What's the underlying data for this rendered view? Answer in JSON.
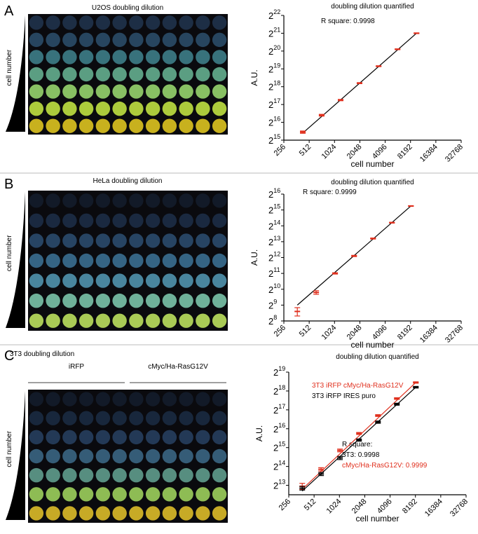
{
  "panels": [
    {
      "label": "A",
      "plate_title": "U2OS doubling dilution",
      "plate_axis": "cell number"
    },
    {
      "label": "B",
      "plate_title": "HeLa doubling dilution",
      "plate_axis": "cell number"
    },
    {
      "label": "C",
      "plate_title": "3T3 doubling dilution",
      "plate_axis": "cell number",
      "groups": [
        "iRFP",
        "cMyc/Ha-RasG12V"
      ]
    }
  ],
  "chart_data": [
    {
      "type": "scatter",
      "title": "doubling dilution quantified",
      "x_label": "cell number",
      "y_label": "A.U.",
      "xscale": "log2",
      "yscale": "log2",
      "xlim": [
        256,
        32768
      ],
      "xticks": [
        256,
        512,
        1024,
        2048,
        4096,
        8192,
        16384,
        32768
      ],
      "ylim": [
        32768,
        4194304
      ],
      "yticks": [
        {
          "value": 32768,
          "label": "2",
          "exponent": "15"
        },
        {
          "value": 65536,
          "label": "2",
          "exponent": "16"
        },
        {
          "value": 131072,
          "label": "2",
          "exponent": "17"
        },
        {
          "value": 262144,
          "label": "2",
          "exponent": "18"
        },
        {
          "value": 524288,
          "label": "2",
          "exponent": "19"
        },
        {
          "value": 1048576,
          "label": "2",
          "exponent": "20"
        },
        {
          "value": 2097152,
          "label": "2",
          "exponent": "21"
        },
        {
          "value": 4194304,
          "label": "2",
          "exponent": "22"
        }
      ],
      "annotations": [
        {
          "text": "R square: 0.9998",
          "color": "#000000"
        }
      ],
      "series": [
        {
          "color": "#e0301e",
          "fit_color": "#000000",
          "x": [
            430,
            720,
            1210,
            2030,
            3420,
            5740,
            9650
          ],
          "values": [
            44800,
            86500,
            155850,
            301100,
            582000,
            1124000,
            2097152
          ],
          "errors": [
            2000,
            3000,
            4000,
            6000,
            10000,
            18000,
            30000
          ],
          "fit_x": [
            430,
            9650
          ],
          "fit_values": [
            43200,
            2097152
          ]
        }
      ]
    },
    {
      "type": "scatter",
      "title": "doubling dilution quantified",
      "x_label": "cell number",
      "y_label": "A.U.",
      "xscale": "log2",
      "yscale": "log2",
      "xlim": [
        256,
        32768
      ],
      "xticks": [
        256,
        512,
        1024,
        2048,
        4096,
        8192,
        16384,
        32768
      ],
      "ylim": [
        256,
        65536
      ],
      "yticks": [
        {
          "value": 256,
          "label": "2",
          "exponent": "8"
        },
        {
          "value": 512,
          "label": "2",
          "exponent": "9"
        },
        {
          "value": 1024,
          "label": "2",
          "exponent": "10"
        },
        {
          "value": 2048,
          "label": "2",
          "exponent": "11"
        },
        {
          "value": 4096,
          "label": "2",
          "exponent": "12"
        },
        {
          "value": 8192,
          "label": "2",
          "exponent": "13"
        },
        {
          "value": 16384,
          "label": "2",
          "exponent": "14"
        },
        {
          "value": 32768,
          "label": "2",
          "exponent": "15"
        },
        {
          "value": 65536,
          "label": "2",
          "exponent": "16"
        }
      ],
      "annotations": [
        {
          "text": "R square: 0.9999",
          "color": "#000000"
        }
      ],
      "series": [
        {
          "color": "#e0301e",
          "fit_color": "#000000",
          "x": [
            370,
            620,
            1040,
            1750,
            2940,
            4930,
            8280
          ],
          "values": [
            388,
            891,
            2048,
            4390,
            9410,
            18820,
            38960
          ],
          "errors": [
            70,
            70,
            60,
            120,
            220,
            350,
            600
          ],
          "fit_x": [
            370,
            8280
          ],
          "fit_values": [
            512,
            38960
          ]
        }
      ]
    },
    {
      "type": "scatter",
      "title": "doubling dilution quantified",
      "x_label": "cell number",
      "y_label": "A.U.",
      "xscale": "log2",
      "yscale": "log2",
      "xlim": [
        256,
        32768
      ],
      "xticks": [
        256,
        512,
        1024,
        2048,
        4096,
        8192,
        16384,
        32768
      ],
      "ylim": [
        5793,
        524288
      ],
      "yticks": [
        {
          "value": 8192,
          "label": "2",
          "exponent": "13"
        },
        {
          "value": 16384,
          "label": "2",
          "exponent": "14"
        },
        {
          "value": 32768,
          "label": "2",
          "exponent": "15"
        },
        {
          "value": 65536,
          "label": "2",
          "exponent": "16"
        },
        {
          "value": 131072,
          "label": "2",
          "exponent": "17"
        },
        {
          "value": 262144,
          "label": "2",
          "exponent": "18"
        },
        {
          "value": 524288,
          "label": "2",
          "exponent": "19"
        }
      ],
      "annotations": [
        {
          "text": "R square:",
          "color": "#000000"
        },
        {
          "text": "3T3: 0.9998",
          "color": "#000000"
        },
        {
          "text": "cMyc/Ha-RasG12V: 0.9999",
          "color": "#e0301e"
        }
      ],
      "series": [
        {
          "name": "3T3 iRFP cMyc/Ha-RasG12V",
          "color": "#e0301e",
          "fit_color": "#e0301e",
          "x": [
            370,
            620,
            1040,
            1750,
            2940,
            4930,
            8280
          ],
          "values": [
            7913,
            14760,
            29530,
            55100,
            106400,
            198600,
            358000
          ],
          "errors": [
            900,
            900,
            1500,
            2000,
            3500,
            6000,
            9000
          ],
          "fit_x": [
            370,
            8280
          ],
          "fit_values": [
            7100,
            358000
          ]
        },
        {
          "name": "3T3 iRFP IRES puro",
          "color": "#000000",
          "fit_color": "#000000",
          "x": [
            370,
            620,
            1040,
            1750,
            2940,
            4930,
            8280
          ],
          "values": [
            7383,
            12420,
            22380,
            43250,
            83500,
            161400,
            301100
          ],
          "errors": [
            500,
            700,
            1300,
            1800,
            3500,
            6000,
            9000
          ],
          "fit_x": [
            370,
            8280
          ],
          "fit_values": [
            6650,
            301100
          ]
        }
      ]
    }
  ]
}
